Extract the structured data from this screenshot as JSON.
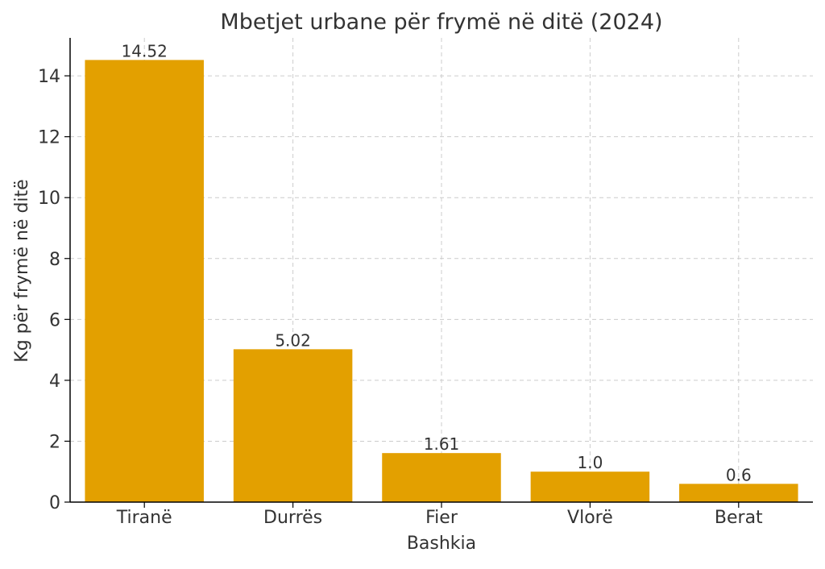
{
  "chart_data": {
    "type": "bar",
    "title": "Mbetjet urbane për frymë në ditë (2024)",
    "xlabel": "Bashkia",
    "ylabel": "Kg për frymë në ditë",
    "categories": [
      "Tiranë",
      "Durrës",
      "Fier",
      "Vlorë",
      "Berat"
    ],
    "values": [
      14.52,
      5.02,
      1.61,
      1.0,
      0.6
    ],
    "value_labels": [
      "14.52",
      "5.02",
      "1.61",
      "1.0",
      "0.6"
    ],
    "ylim": [
      0,
      15.246
    ],
    "yticks": [
      0,
      2,
      4,
      6,
      8,
      10,
      12,
      14
    ],
    "grid": true,
    "legend": "none",
    "colors": {
      "bar": "#E3A000",
      "grid": "#cccccc",
      "axis": "#000000",
      "text": "#333333"
    }
  }
}
